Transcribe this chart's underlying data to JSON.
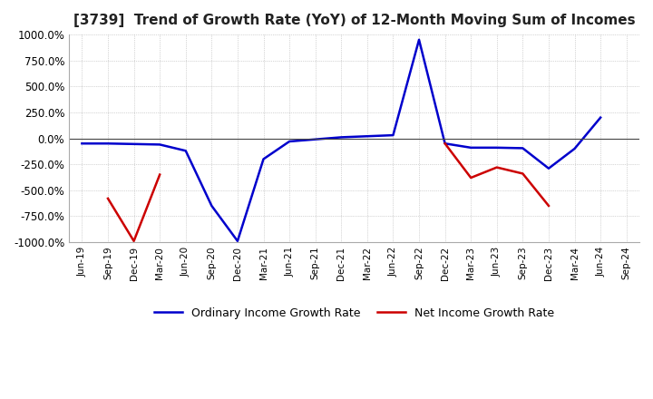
{
  "title": "[3739]  Trend of Growth Rate (YoY) of 12-Month Moving Sum of Incomes",
  "title_fontsize": 11,
  "ylim": [
    -1000,
    1000
  ],
  "yticks": [
    -1000,
    -750,
    -500,
    -250,
    0,
    250,
    500,
    750,
    1000
  ],
  "background_color": "#ffffff",
  "grid_color": "#b0b0b0",
  "ordinary_color": "#0000cc",
  "net_color": "#cc0000",
  "legend_labels": [
    "Ordinary Income Growth Rate",
    "Net Income Growth Rate"
  ],
  "dates": [
    "Jun-19",
    "Sep-19",
    "Dec-19",
    "Mar-20",
    "Jun-20",
    "Sep-20",
    "Dec-20",
    "Mar-21",
    "Jun-21",
    "Sep-21",
    "Dec-21",
    "Mar-22",
    "Jun-22",
    "Sep-22",
    "Dec-22",
    "Mar-23",
    "Jun-23",
    "Sep-23",
    "Dec-23",
    "Mar-24",
    "Jun-24",
    "Sep-24"
  ],
  "ordinary_values": [
    -50,
    -50,
    -55,
    -60,
    -120,
    -650,
    -990,
    -200,
    -30,
    -10,
    10,
    20,
    30,
    950,
    -50,
    -90,
    -90,
    -95,
    -290,
    -100,
    200,
    null
  ],
  "net_values": [
    null,
    -580,
    -990,
    -350,
    null,
    null,
    null,
    null,
    null,
    null,
    null,
    null,
    null,
    null,
    -50,
    -380,
    -280,
    -340,
    -650,
    null,
    null,
    null
  ]
}
